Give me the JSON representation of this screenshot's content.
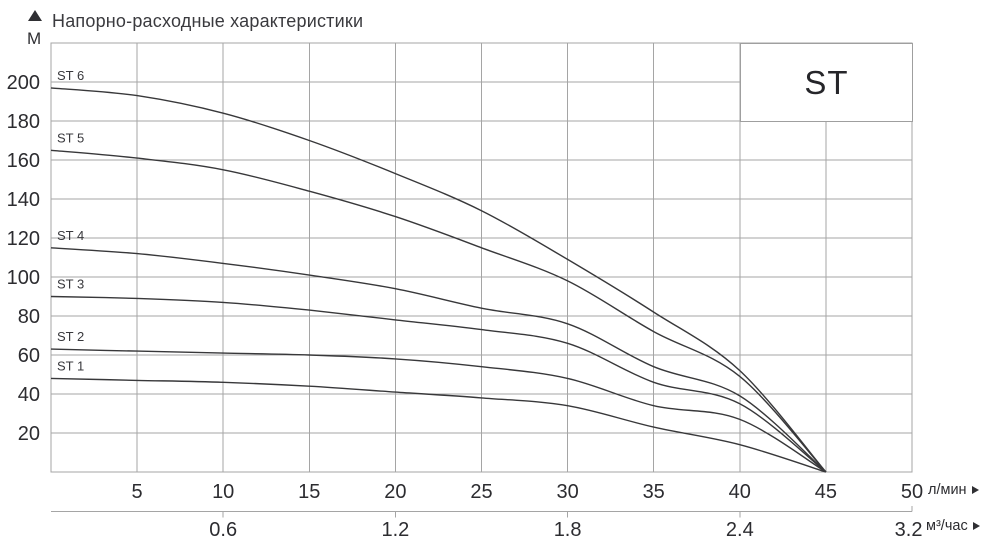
{
  "header": {
    "title": "Напорно-расходные характеристики",
    "y_axis_unit": "М"
  },
  "legend_box": {
    "label": "ST"
  },
  "axes": {
    "y": {
      "unit": "М",
      "ticks": [
        200,
        180,
        160,
        140,
        120,
        100,
        80,
        60,
        40,
        20
      ]
    },
    "x_primary": {
      "unit": "л/мин",
      "ticks": [
        5,
        10,
        15,
        20,
        25,
        30,
        35,
        40,
        45,
        50
      ]
    },
    "x_secondary": {
      "unit": "м³/час",
      "labels": [
        "0.6",
        "1.2",
        "1.8",
        "2.4",
        "3.2"
      ]
    }
  },
  "chart_data": {
    "type": "line",
    "title": "Напорно-расходные характеристики",
    "xlabel": "л/мин",
    "x2label": "м³/час",
    "ylabel": "М",
    "xlim": [
      0,
      50
    ],
    "ylim": [
      0,
      220
    ],
    "grid": true,
    "x_grid_step": 5,
    "y_grid_step": 20,
    "legend_position": "top-right box",
    "x": [
      0,
      5,
      10,
      15,
      20,
      25,
      30,
      35,
      40,
      45
    ],
    "series": [
      {
        "name": "ST 6",
        "values": [
          197,
          193,
          184,
          170,
          153,
          134,
          109,
          82,
          52,
          0
        ]
      },
      {
        "name": "ST 5",
        "values": [
          165,
          161,
          155,
          144,
          131,
          115,
          98,
          72,
          49,
          0
        ]
      },
      {
        "name": "ST 4",
        "values": [
          115,
          112,
          107,
          101,
          94,
          84,
          76,
          54,
          39,
          0
        ]
      },
      {
        "name": "ST 3",
        "values": [
          90,
          89,
          87,
          83,
          78,
          73,
          66,
          46,
          35,
          0
        ]
      },
      {
        "name": "ST 2",
        "values": [
          63,
          62,
          61,
          60,
          58,
          54,
          48,
          34,
          27,
          0
        ]
      },
      {
        "name": "ST 1",
        "values": [
          48,
          47,
          46,
          44,
          41,
          38,
          34,
          23,
          14,
          0
        ]
      }
    ],
    "x_secondary_ticks": [
      {
        "label": "0.6",
        "at_lmin": 10,
        "tick": true
      },
      {
        "label": "1.2",
        "at_lmin": 20,
        "tick": true
      },
      {
        "label": "1.8",
        "at_lmin": 30,
        "tick": true
      },
      {
        "label": "2.4",
        "at_lmin": 40,
        "tick": true
      },
      {
        "label": "3.2",
        "at_lmin": 49.8,
        "tick": false
      }
    ]
  },
  "colors": {
    "grid": "#a5a5a5",
    "curve": "#38383a",
    "text": "#2c2c30",
    "title": "#3a3a3e",
    "box_border": "#9f9f9f"
  }
}
